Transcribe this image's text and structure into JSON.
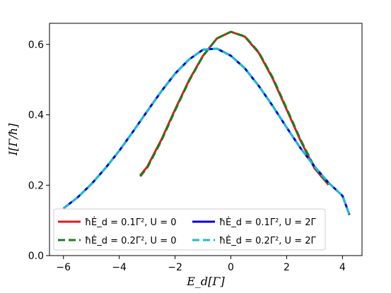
{
  "chart_data": {
    "type": "line",
    "xlabel": "E_d[Γ]",
    "ylabel": "I[Γ/ħ]",
    "xlim": [
      -6.5,
      4.7
    ],
    "ylim": [
      0.0,
      0.66
    ],
    "xticks": [
      -6,
      -4,
      -2,
      0,
      2,
      4
    ],
    "yticks": [
      0.0,
      0.2,
      0.4,
      0.6
    ],
    "xtick_labels": [
      "−6",
      "−4",
      "−2",
      "0",
      "2",
      "4"
    ],
    "ytick_labels": [
      "0.0",
      "0.2",
      "0.4",
      "0.6"
    ],
    "grid": false,
    "legend_position": "lower-center",
    "series": [
      {
        "name": "ħĖ_d = 0.1Γ², U = 0",
        "color": "#e41a1c",
        "style": "solid",
        "x": [
          -3.25,
          -3.0,
          -2.5,
          -2.0,
          -1.5,
          -1.0,
          -0.5,
          0.0,
          0.5,
          1.0,
          1.5,
          2.0,
          2.5,
          3.0,
          3.5
        ],
        "y": [
          0.228,
          0.252,
          0.328,
          0.415,
          0.498,
          0.568,
          0.617,
          0.636,
          0.622,
          0.576,
          0.503,
          0.415,
          0.326,
          0.248,
          0.201
        ]
      },
      {
        "name": "ħĖ_d = 0.2Γ², U = 0",
        "color": "#1a7f1a",
        "style": "dashed",
        "x": [
          -3.25,
          -3.0,
          -2.5,
          -2.0,
          -1.5,
          -1.0,
          -0.5,
          0.0,
          0.5,
          1.0,
          1.5,
          2.0,
          2.5,
          3.0,
          3.5
        ],
        "y": [
          0.225,
          0.249,
          0.325,
          0.412,
          0.496,
          0.567,
          0.617,
          0.636,
          0.623,
          0.578,
          0.506,
          0.418,
          0.329,
          0.251,
          0.203
        ]
      },
      {
        "name": "ħĖ_d = 0.1Γ², U = 2Γ",
        "color": "#0000e0",
        "style": "solid",
        "x": [
          -6.0,
          -5.5,
          -5.0,
          -4.5,
          -4.0,
          -3.5,
          -3.0,
          -2.5,
          -2.0,
          -1.5,
          -1.0,
          -0.5,
          0.0,
          0.5,
          1.0,
          1.5,
          2.0,
          2.5,
          3.0,
          3.5,
          4.0,
          4.25
        ],
        "y": [
          0.134,
          0.165,
          0.203,
          0.248,
          0.298,
          0.353,
          0.41,
          0.466,
          0.517,
          0.557,
          0.585,
          0.588,
          0.568,
          0.532,
          0.482,
          0.425,
          0.364,
          0.305,
          0.253,
          0.207,
          0.17,
          0.116
        ]
      },
      {
        "name": "ħĖ_d = 0.2Γ², U = 2Γ",
        "color": "#17becf",
        "style": "dashed",
        "x": [
          -6.0,
          -5.5,
          -5.0,
          -4.5,
          -4.0,
          -3.5,
          -3.0,
          -2.5,
          -2.0,
          -1.5,
          -1.0,
          -0.5,
          0.0,
          0.5,
          1.0,
          1.5,
          2.0,
          2.5,
          3.0,
          3.5,
          4.0,
          4.25
        ],
        "y": [
          0.134,
          0.165,
          0.203,
          0.248,
          0.298,
          0.353,
          0.41,
          0.466,
          0.517,
          0.557,
          0.585,
          0.588,
          0.568,
          0.532,
          0.482,
          0.425,
          0.364,
          0.305,
          0.253,
          0.207,
          0.17,
          0.116
        ]
      }
    ]
  }
}
